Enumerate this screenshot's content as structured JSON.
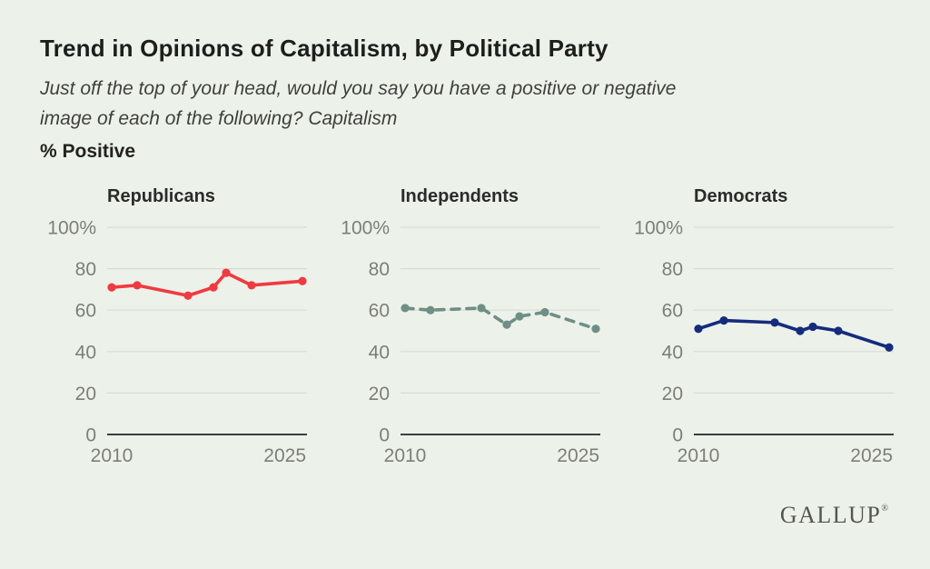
{
  "header": {
    "title": "Trend in Opinions of Capitalism, by Political Party",
    "subtitle_lines": [
      "Just off the top of your head, would you say you have a positive or negative",
      "image of each of the following? Capitalism"
    ],
    "measure_label": "% Positive"
  },
  "chart_data": {
    "type": "line",
    "layout": "three small multiples, one per party, shared axes",
    "x": [
      2010,
      2012,
      2016,
      2018,
      2019,
      2021,
      2025
    ],
    "series": [
      {
        "name": "Republicans",
        "values": [
          71,
          72,
          67,
          71,
          78,
          72,
          74
        ],
        "color": "#F23940",
        "dashed": false
      },
      {
        "name": "Independents",
        "values": [
          61,
          60,
          61,
          53,
          57,
          59,
          51
        ],
        "color": "#6F8F86",
        "dashed": true
      },
      {
        "name": "Democrats",
        "values": [
          51,
          55,
          54,
          50,
          52,
          50,
          42
        ],
        "color": "#152B7E",
        "dashed": false
      }
    ],
    "ylim": [
      0,
      100
    ],
    "xlim": [
      2010,
      2025
    ],
    "y_tick_values": [
      100,
      80,
      60,
      40,
      20,
      0
    ],
    "y_tick_labels": [
      "100%",
      "80",
      "60",
      "40",
      "20",
      "0"
    ],
    "x_tick_labels": [
      "2010",
      "2025"
    ],
    "grid": true,
    "legend_position": "none"
  },
  "footer": {
    "logo": "GALLUP",
    "logo_mark": "®"
  },
  "colors": {
    "background": "#ECF2EA",
    "gridline": "#D7DBD4",
    "baseline": "#3E3E3C",
    "tick_text": "#7C7F79"
  }
}
